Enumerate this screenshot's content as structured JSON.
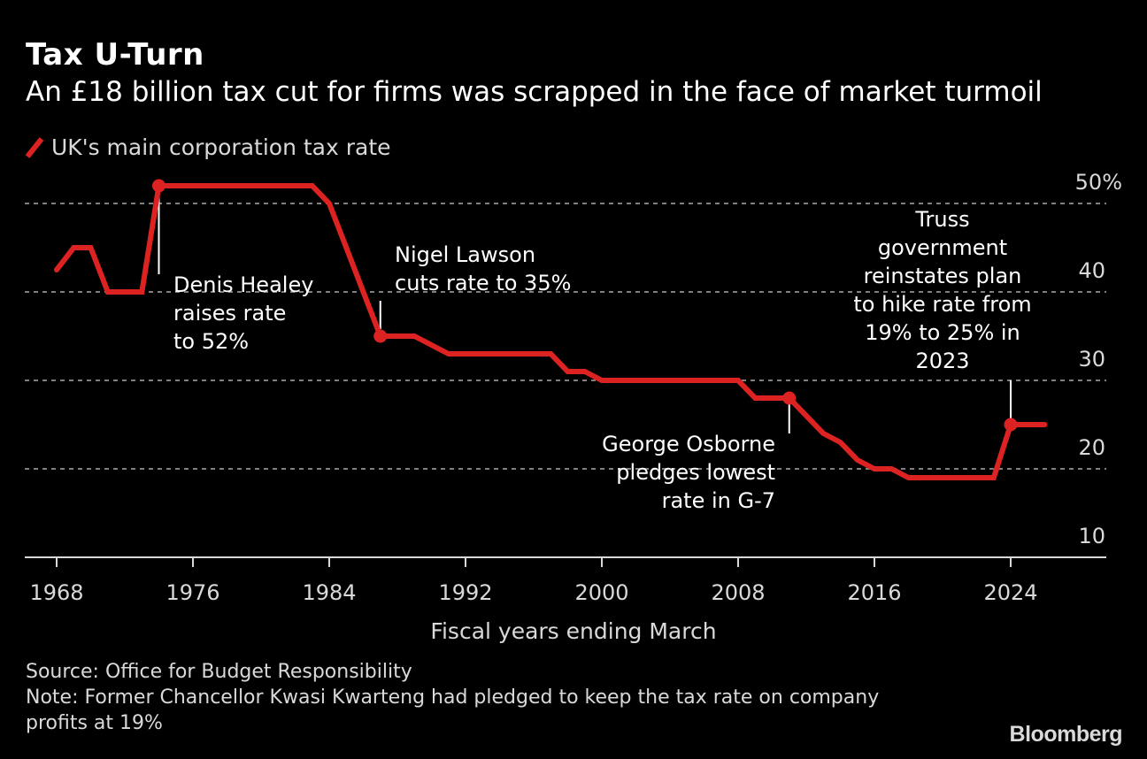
{
  "header": {
    "title": "Tax U-Turn",
    "subtitle": "An £18 billion tax cut for firms was scrapped in the face of market turmoil"
  },
  "legend": {
    "label": "UK's main corporation tax rate",
    "color": "#dd2222"
  },
  "footer": {
    "source": "Source: Office for Budget Responsibility",
    "note": "Note: Former Chancellor Kwasi Kwarteng had pledged to keep the tax rate on company profits at 19%",
    "logo": "Bloomberg"
  },
  "chart_data": {
    "type": "line",
    "title": "Tax U-Turn",
    "subtitle": "An £18 billion tax cut for firms was scrapped in the face of market turmoil",
    "xlabel": "Fiscal years ending March",
    "ylabel": "",
    "xlim": [
      1967.3,
      2030.8
    ],
    "ylim": [
      10,
      50
    ],
    "y_axis_side": "right",
    "grid": true,
    "legend_position": "top-left",
    "x_ticks": [
      1968,
      1976,
      1984,
      1992,
      2000,
      2008,
      2016,
      2024
    ],
    "x_tick_labels": [
      "1968",
      "1976",
      "1984",
      "1992",
      "2000",
      "2008",
      "2016",
      "2024"
    ],
    "y_ticks": [
      10,
      20,
      30,
      40,
      50
    ],
    "y_tick_labels": [
      "10",
      "20",
      "30",
      "40",
      "50%"
    ],
    "series": [
      {
        "name": "UK's main corporation tax rate",
        "color": "#dd2222",
        "x": [
          1968,
          1969,
          1970,
          1971,
          1972,
          1973,
          1974,
          1975,
          1976,
          1977,
          1978,
          1979,
          1980,
          1981,
          1982,
          1983,
          1984,
          1985,
          1986,
          1987,
          1988,
          1989,
          1990,
          1991,
          1992,
          1993,
          1994,
          1995,
          1996,
          1997,
          1998,
          1999,
          2000,
          2001,
          2002,
          2003,
          2004,
          2005,
          2006,
          2007,
          2008,
          2009,
          2010,
          2011,
          2012,
          2013,
          2014,
          2015,
          2016,
          2017,
          2018,
          2019,
          2020,
          2021,
          2022,
          2023,
          2024,
          2025,
          2026
        ],
        "values": [
          42.5,
          45,
          45,
          40,
          40,
          40,
          52,
          52,
          52,
          52,
          52,
          52,
          52,
          52,
          52,
          52,
          50,
          45,
          40,
          35,
          35,
          35,
          34,
          33,
          33,
          33,
          33,
          33,
          33,
          33,
          31,
          31,
          30,
          30,
          30,
          30,
          30,
          30,
          30,
          30,
          30,
          28,
          28,
          28,
          26,
          24,
          23,
          21,
          20,
          20,
          19,
          19,
          19,
          19,
          19,
          19,
          25,
          25,
          25
        ]
      }
    ],
    "annotations": [
      {
        "x": 1974,
        "value": 52,
        "lines": [
          "Denis Healey",
          "raises rate",
          "to 52%"
        ],
        "align": "left",
        "position": "below-right"
      },
      {
        "x": 1987,
        "value": 35,
        "lines": [
          "Nigel Lawson",
          "cuts rate to 35%"
        ],
        "align": "left",
        "position": "above-right"
      },
      {
        "x": 2011,
        "value": 28,
        "lines": [
          "George Osborne",
          "pledges lowest",
          "rate in G-7"
        ],
        "align": "right",
        "position": "below-left"
      },
      {
        "x": 2024,
        "value": 25,
        "lines": [
          "Truss",
          "government",
          "reinstates plan",
          "to hike rate from",
          "19% to 25% in",
          "2023"
        ],
        "align": "center",
        "position": "above"
      }
    ]
  }
}
